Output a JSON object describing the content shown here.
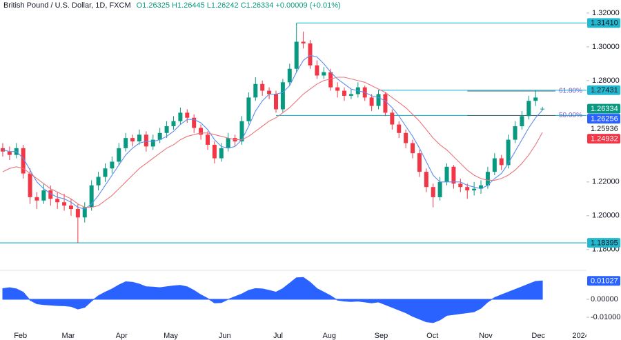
{
  "chart_data": {
    "type": "candlestick",
    "title": "British Pound / U.S. Dollar, 1D, FXCM",
    "subtitle": "O1.26325 H1.26445 L1.26242 C1.26334 +0.00009 (+0.01%)",
    "up_color": "#089981",
    "down_color": "#f23645",
    "candles": [
      [
        1.24,
        1.243,
        1.235,
        1.238
      ],
      [
        1.238,
        1.241,
        1.233,
        1.236
      ],
      [
        1.236,
        1.243,
        1.234,
        1.24
      ],
      [
        1.24,
        1.242,
        1.222,
        1.225
      ],
      [
        1.225,
        1.228,
        1.207,
        1.211
      ],
      [
        1.211,
        1.214,
        1.204,
        1.209
      ],
      [
        1.209,
        1.219,
        1.207,
        1.215
      ],
      [
        1.215,
        1.218,
        1.206,
        1.21
      ],
      [
        1.21,
        1.214,
        1.204,
        1.208
      ],
      [
        1.208,
        1.213,
        1.203,
        1.206
      ],
      [
        1.206,
        1.21,
        1.2,
        1.204
      ],
      [
        1.204,
        1.207,
        1.184,
        1.199
      ],
      [
        1.199,
        1.208,
        1.196,
        1.205
      ],
      [
        1.205,
        1.221,
        1.203,
        1.218
      ],
      [
        1.218,
        1.226,
        1.215,
        1.223
      ],
      [
        1.223,
        1.231,
        1.22,
        1.228
      ],
      [
        1.228,
        1.235,
        1.225,
        1.232
      ],
      [
        1.232,
        1.243,
        1.23,
        1.24
      ],
      [
        1.24,
        1.249,
        1.238,
        1.246
      ],
      [
        1.246,
        1.248,
        1.241,
        1.244
      ],
      [
        1.244,
        1.251,
        1.242,
        1.248
      ],
      [
        1.248,
        1.25,
        1.238,
        1.241
      ],
      [
        1.241,
        1.248,
        1.239,
        1.245
      ],
      [
        1.245,
        1.252,
        1.243,
        1.249
      ],
      [
        1.249,
        1.256,
        1.246,
        1.253
      ],
      [
        1.253,
        1.259,
        1.251,
        1.256
      ],
      [
        1.256,
        1.264,
        1.254,
        1.261
      ],
      [
        1.261,
        1.263,
        1.255,
        1.258
      ],
      [
        1.258,
        1.26,
        1.249,
        1.252
      ],
      [
        1.252,
        1.254,
        1.245,
        1.248
      ],
      [
        1.248,
        1.25,
        1.239,
        1.242
      ],
      [
        1.242,
        1.244,
        1.231,
        1.234
      ],
      [
        1.234,
        1.243,
        1.232,
        1.24
      ],
      [
        1.24,
        1.249,
        1.238,
        1.246
      ],
      [
        1.246,
        1.248,
        1.241,
        1.244
      ],
      [
        1.244,
        1.259,
        1.242,
        1.256
      ],
      [
        1.256,
        1.273,
        1.254,
        1.27
      ],
      [
        1.27,
        1.282,
        1.268,
        1.278
      ],
      [
        1.278,
        1.28,
        1.271,
        1.274
      ],
      [
        1.274,
        1.276,
        1.269,
        1.272
      ],
      [
        1.272,
        1.274,
        1.261,
        1.263
      ],
      [
        1.263,
        1.281,
        1.261,
        1.279
      ],
      [
        1.279,
        1.29,
        1.277,
        1.287
      ],
      [
        1.287,
        1.3141,
        1.285,
        1.303
      ],
      [
        1.303,
        1.309,
        1.299,
        1.302
      ],
      [
        1.302,
        1.304,
        1.287,
        1.289
      ],
      [
        1.289,
        1.292,
        1.281,
        1.283
      ],
      [
        1.283,
        1.288,
        1.281,
        1.285
      ],
      [
        1.285,
        1.287,
        1.274,
        1.276
      ],
      [
        1.276,
        1.279,
        1.27,
        1.274
      ],
      [
        1.274,
        1.276,
        1.268,
        1.271
      ],
      [
        1.271,
        1.275,
        1.269,
        1.272
      ],
      [
        1.272,
        1.279,
        1.27,
        1.276
      ],
      [
        1.276,
        1.277,
        1.268,
        1.27
      ],
      [
        1.27,
        1.272,
        1.262,
        1.265
      ],
      [
        1.265,
        1.2743,
        1.263,
        1.272
      ],
      [
        1.272,
        1.273,
        1.259,
        1.261
      ],
      [
        1.261,
        1.263,
        1.251,
        1.254
      ],
      [
        1.254,
        1.256,
        1.246,
        1.249
      ],
      [
        1.249,
        1.251,
        1.24,
        1.243
      ],
      [
        1.243,
        1.245,
        1.234,
        1.237
      ],
      [
        1.237,
        1.239,
        1.223,
        1.226
      ],
      [
        1.226,
        1.228,
        1.214,
        1.217
      ],
      [
        1.217,
        1.219,
        1.205,
        1.211
      ],
      [
        1.211,
        1.223,
        1.209,
        1.22
      ],
      [
        1.22,
        1.231,
        1.218,
        1.229
      ],
      [
        1.229,
        1.23,
        1.216,
        1.219
      ],
      [
        1.219,
        1.222,
        1.214,
        1.217
      ],
      [
        1.217,
        1.219,
        1.21,
        1.215
      ],
      [
        1.215,
        1.22,
        1.212,
        1.216
      ],
      [
        1.216,
        1.221,
        1.213,
        1.218
      ],
      [
        1.218,
        1.229,
        1.216,
        1.226
      ],
      [
        1.226,
        1.237,
        1.224,
        1.234
      ],
      [
        1.234,
        1.236,
        1.227,
        1.23
      ],
      [
        1.23,
        1.248,
        1.228,
        1.245
      ],
      [
        1.245,
        1.256,
        1.243,
        1.253
      ],
      [
        1.253,
        1.262,
        1.251,
        1.259
      ],
      [
        1.259,
        1.271,
        1.257,
        1.268
      ],
      [
        1.268,
        1.2743,
        1.265,
        1.27
      ],
      [
        1.26325,
        1.26445,
        1.26242,
        1.26334
      ]
    ],
    "moving_averages": [
      {
        "color": "#5b8def",
        "values": [
          1.239,
          1.238,
          1.238,
          1.234,
          1.227,
          1.22,
          1.216,
          1.213,
          1.211,
          1.21,
          1.208,
          1.205,
          1.204,
          1.207,
          1.212,
          1.218,
          1.224,
          1.23,
          1.236,
          1.24,
          1.243,
          1.244,
          1.244,
          1.245,
          1.247,
          1.25,
          1.254,
          1.257,
          1.257,
          1.255,
          1.251,
          1.245,
          1.241,
          1.24,
          1.241,
          1.245,
          1.253,
          1.262,
          1.268,
          1.272,
          1.272,
          1.273,
          1.277,
          1.285,
          1.292,
          1.295,
          1.294,
          1.29,
          1.285,
          1.281,
          1.278,
          1.275,
          1.274,
          1.273,
          1.271,
          1.27,
          1.268,
          1.264,
          1.259,
          1.253,
          1.247,
          1.24,
          1.232,
          1.224,
          1.22,
          1.22,
          1.22,
          1.22,
          1.218,
          1.217,
          1.216,
          1.218,
          1.222,
          1.225,
          1.231,
          1.238,
          1.245,
          1.252,
          1.258,
          1.26256
        ]
      },
      {
        "color": "#e8767b",
        "values": [
          1.226,
          1.228,
          1.229,
          1.228,
          1.225,
          1.222,
          1.219,
          1.216,
          1.214,
          1.212,
          1.21,
          1.207,
          1.205,
          1.205,
          1.206,
          1.209,
          1.212,
          1.216,
          1.22,
          1.224,
          1.228,
          1.231,
          1.234,
          1.237,
          1.24,
          1.242,
          1.245,
          1.247,
          1.248,
          1.249,
          1.249,
          1.248,
          1.247,
          1.246,
          1.245,
          1.245,
          1.247,
          1.25,
          1.253,
          1.256,
          1.258,
          1.261,
          1.264,
          1.268,
          1.272,
          1.275,
          1.278,
          1.28,
          1.281,
          1.282,
          1.282,
          1.281,
          1.28,
          1.279,
          1.277,
          1.275,
          1.273,
          1.27,
          1.267,
          1.264,
          1.26,
          1.256,
          1.251,
          1.246,
          1.242,
          1.239,
          1.235,
          1.231,
          1.227,
          1.224,
          1.222,
          1.221,
          1.221,
          1.222,
          1.224,
          1.227,
          1.231,
          1.236,
          1.242,
          1.24932
        ]
      }
    ],
    "levels": [
      {
        "value": 1.3141,
        "label": "1.31410",
        "from": 43,
        "badge": true
      },
      {
        "value": 1.27431,
        "label": "1.27431",
        "from": 55,
        "badge": true
      },
      {
        "value": 1.25936,
        "label": "1.25936",
        "from": 40,
        "badge": false
      },
      {
        "value": 1.18395,
        "label": "1.18395",
        "from": -0.4,
        "badge": true
      }
    ],
    "level_color": "#22b8cf",
    "fib": [
      {
        "value": 61.8,
        "label": "61.80%",
        "price": 1.2738,
        "from": 68,
        "to": 80.9
      },
      {
        "value": 50,
        "label": "50.00%",
        "price": 1.25936,
        "from": 68,
        "to": 80.9
      }
    ],
    "xlim": [
      -0.4,
      85.45
    ],
    "ylim": [
      1.1685,
      1.3277
    ],
    "yticks": [
      {
        "value": 1.32,
        "label": "1.32000"
      },
      {
        "value": 1.3,
        "label": "1.30000"
      },
      {
        "value": 1.28,
        "label": "1.28000"
      },
      {
        "value": 1.22,
        "label": "1.22000"
      },
      {
        "value": 1.2,
        "label": "1.20000"
      },
      {
        "value": 1.18,
        "label": "1.18000"
      }
    ],
    "xticks": [
      {
        "value": 2.6,
        "label": "Feb"
      },
      {
        "value": 9.6,
        "label": "Mar"
      },
      {
        "value": 17.4,
        "label": "Apr"
      },
      {
        "value": 24.6,
        "label": "May"
      },
      {
        "value": 32.5,
        "label": "Jun"
      },
      {
        "value": 40.3,
        "label": "Jul"
      },
      {
        "value": 47.8,
        "label": "Aug"
      },
      {
        "value": 55.4,
        "label": "Sep"
      },
      {
        "value": 62.9,
        "label": "Oct"
      },
      {
        "value": 70.7,
        "label": "Nov"
      },
      {
        "value": 78.4,
        "label": "Dec"
      },
      {
        "value": 84.6,
        "label": "2024"
      }
    ],
    "oscillator": {
      "type": "area",
      "color": "#2962ff",
      "ylim": [
        -0.0169,
        0.015
      ],
      "yticks": [
        {
          "value": 0,
          "label": "0.00000"
        },
        {
          "value": -0.01,
          "label": "-0.01000"
        }
      ],
      "values": [
        0.006,
        0.0065,
        0.0058,
        0.004,
        -0.0005,
        -0.0025,
        -0.003,
        -0.0032,
        -0.0035,
        -0.0036,
        -0.004,
        -0.0054,
        -0.0045,
        -0.001,
        0.002,
        0.004,
        0.0058,
        0.008,
        0.0098,
        0.0095,
        0.0085,
        0.007,
        0.0068,
        0.0065,
        0.007,
        0.0075,
        0.0078,
        0.007,
        0.005,
        0.0025,
        0.0005,
        -0.002,
        -0.0018,
        0.0,
        0.0015,
        0.003,
        0.005,
        0.006,
        0.0058,
        0.005,
        0.004,
        0.006,
        0.009,
        0.012,
        0.0122,
        0.0095,
        0.006,
        0.004,
        0.002,
        -0.0005,
        -0.001,
        -0.0012,
        -0.001,
        -0.0015,
        -0.002,
        -0.0015,
        -0.003,
        -0.0045,
        -0.006,
        -0.0075,
        -0.0095,
        -0.011,
        -0.0125,
        -0.013,
        -0.0115,
        -0.009,
        -0.0085,
        -0.008,
        -0.0075,
        -0.007,
        -0.005,
        -0.0015,
        0.001,
        0.0025,
        0.004,
        0.0055,
        0.007,
        0.0085,
        0.01,
        0.01027
      ]
    }
  }
}
